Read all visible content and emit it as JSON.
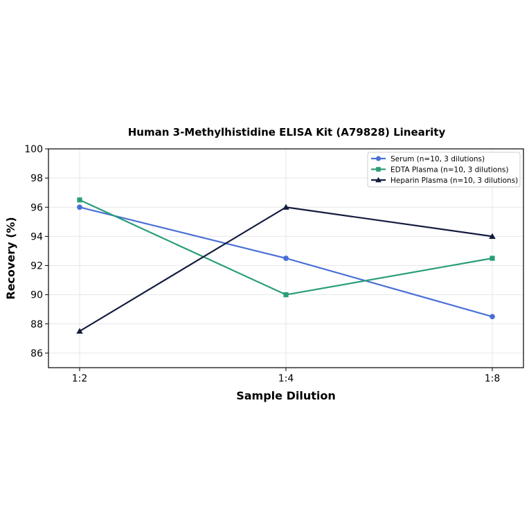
{
  "chart_data": {
    "type": "line",
    "title": "Human 3-Methylhistidine ELISA Kit (A79828) Linearity",
    "xlabel": "Sample Dilution",
    "ylabel": "Recovery (%)",
    "categories": [
      "1:2",
      "1:4",
      "1:8"
    ],
    "ylim": [
      85,
      100
    ],
    "yticks": [
      86,
      88,
      90,
      92,
      94,
      96,
      98,
      100
    ],
    "grid": true,
    "legend_position": "top-right",
    "series": [
      {
        "name": "Serum (n=10, 3 dilutions)",
        "values": [
          96.0,
          92.5,
          88.5
        ],
        "color": "#4a6fd6",
        "marker": "circle"
      },
      {
        "name": "EDTA Plasma (n=10, 3 dilutions)",
        "values": [
          96.5,
          90.0,
          92.5
        ],
        "color": "#2a9d78",
        "marker": "square"
      },
      {
        "name": "Heparin Plasma (n=10, 3 dilutions)",
        "values": [
          87.5,
          96.0,
          94.0
        ],
        "color": "#131c3e",
        "marker": "triangle"
      }
    ]
  }
}
